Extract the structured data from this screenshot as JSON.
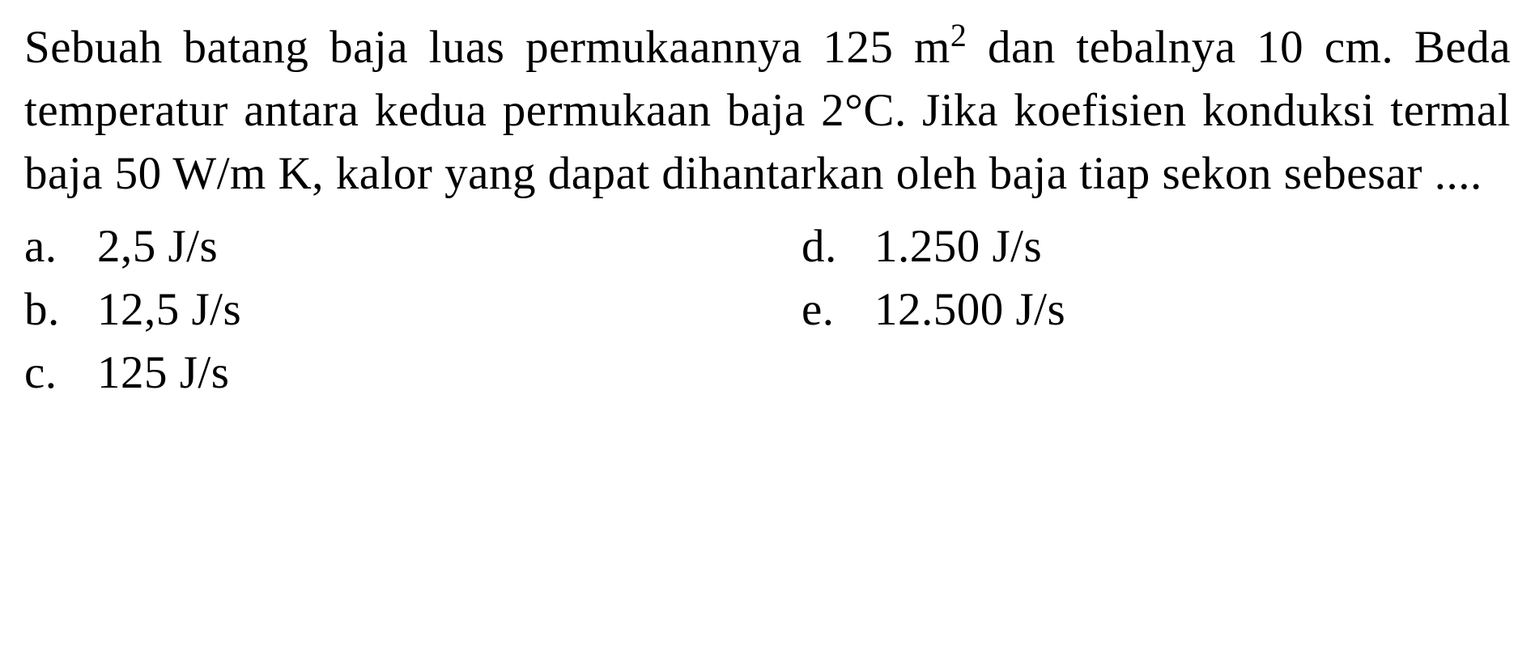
{
  "question": {
    "text_parts": {
      "p1": "Sebuah batang baja luas permukaannya 125 m",
      "sup1": "2",
      "p2": " dan tebalnya 10 cm. Beda temperatur antara kedua per­mukaan baja 2°C. Jika koefisien konduksi termal baja 50 W/m K, kalor yang dapat dihantarkan oleh baja tiap sekon sebesar ...."
    }
  },
  "options": {
    "a": {
      "letter": "a.",
      "value": "2,5 J/s"
    },
    "b": {
      "letter": "b.",
      "value": "12,5 J/s"
    },
    "c": {
      "letter": "c.",
      "value": "125 J/s"
    },
    "d": {
      "letter": "d.",
      "value": "1.250 J/s"
    },
    "e": {
      "letter": "e.",
      "value": "12.500 J/s"
    }
  },
  "style": {
    "background_color": "#ffffff",
    "text_color": "#000000",
    "font_family": "Palatino Linotype, Book Antiqua, Palatino, Georgia, serif",
    "font_size_pt": 43,
    "line_height": 1.37
  }
}
